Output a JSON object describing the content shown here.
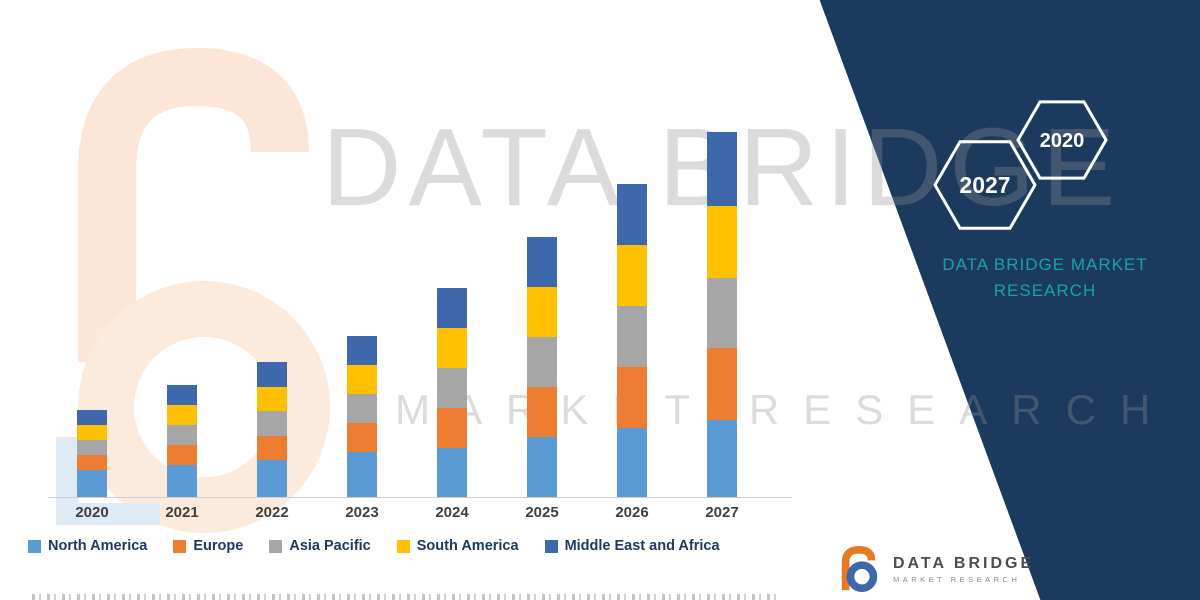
{
  "watermark": {
    "line1": "DATA BRIDGE",
    "line2": "MARKET RESEARCH"
  },
  "badges": {
    "front_year": "2027",
    "back_year": "2020"
  },
  "brand": {
    "line1": "DATA BRIDGE MARKET",
    "line2": "RESEARCH"
  },
  "footer_logo": {
    "name": "DATA BRIDGE",
    "sub": "MARKET RESEARCH"
  },
  "colors": {
    "panel_navy": "#1b3a5e",
    "brand_teal": "#17a2a6",
    "axis_label": "#3f3f3f",
    "legend_text": "#1f3864",
    "baseline": "#cfcfcf",
    "watermark_peach": "#fbe6d8"
  },
  "chart_data": {
    "type": "bar",
    "stacked": true,
    "title": "",
    "xlabel": "",
    "ylabel": "",
    "y_axis_visible": false,
    "grid": false,
    "legend_position": "bottom",
    "value_note": "no value axis shown; values estimated from relative bar heights (arbitrary units)",
    "categories": [
      "2020",
      "2021",
      "2022",
      "2023",
      "2024",
      "2025",
      "2026",
      "2027"
    ],
    "series": [
      {
        "name": "North America",
        "color": "#5b9bd5",
        "values": [
          2.7,
          3.2,
          3.7,
          4.5,
          4.9,
          6.0,
          6.9,
          7.7
        ]
      },
      {
        "name": "Europe",
        "color": "#ed7d31",
        "values": [
          1.5,
          2.0,
          2.45,
          2.9,
          4.0,
          5.0,
          6.1,
          7.2
        ]
      },
      {
        "name": "Asia Pacific",
        "color": "#a6a6a6",
        "values": [
          1.5,
          2.0,
          2.45,
          2.9,
          4.0,
          5.0,
          6.1,
          7.0
        ]
      },
      {
        "name": "South America",
        "color": "#ffc000",
        "values": [
          1.5,
          2.0,
          2.45,
          2.9,
          4.0,
          5.0,
          6.1,
          7.2
        ]
      },
      {
        "name": "Middle East and Africa",
        "color": "#3e68ac",
        "values": [
          1.5,
          2.0,
          2.45,
          2.9,
          4.0,
          5.0,
          6.1,
          7.4
        ]
      }
    ],
    "totals": [
      8.7,
      11.2,
      13.5,
      16.1,
      20.9,
      26.0,
      31.3,
      36.5
    ]
  }
}
